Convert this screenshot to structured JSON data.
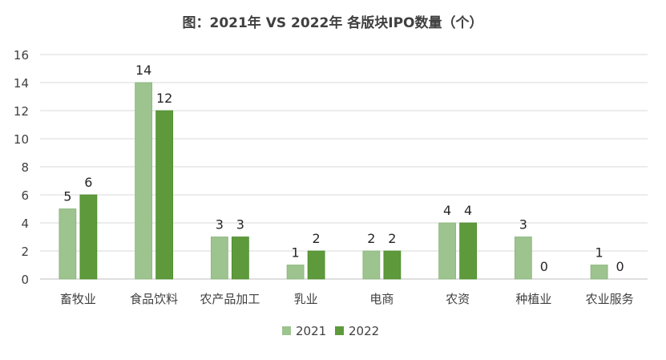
{
  "chart_data": {
    "type": "bar",
    "title": "图：2021年 VS 2022年 各版块IPO数量（个）",
    "categories": [
      "畜牧业",
      "食品饮料",
      "农产品加工",
      "乳业",
      "电商",
      "农资",
      "种植业",
      "农业服务"
    ],
    "series": [
      {
        "name": "2021",
        "values": [
          5,
          14,
          3,
          1,
          2,
          4,
          3,
          1
        ],
        "color": "#9DC38F"
      },
      {
        "name": "2022",
        "values": [
          6,
          12,
          3,
          2,
          2,
          4,
          0,
          0
        ],
        "color": "#5E9A3C"
      }
    ],
    "ylim": [
      0,
      16
    ],
    "yticks": [
      0,
      2,
      4,
      6,
      8,
      10,
      12,
      14,
      16
    ],
    "grid": true,
    "legend": "bottom",
    "xlabel": "",
    "ylabel": ""
  }
}
